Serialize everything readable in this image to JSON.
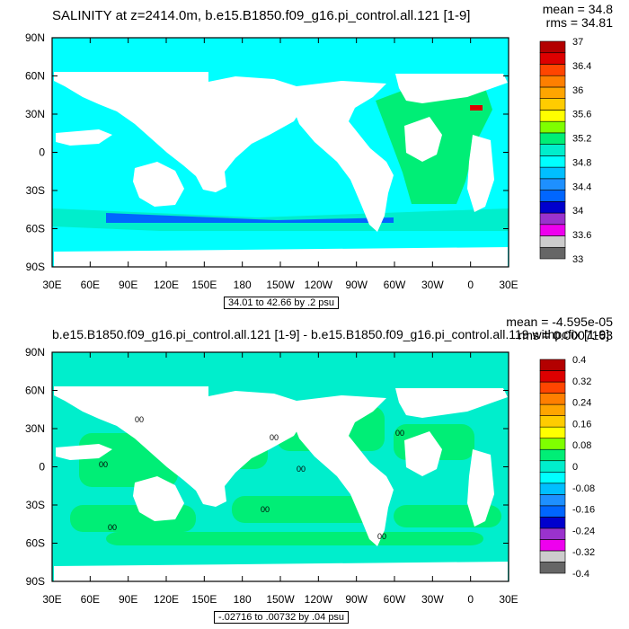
{
  "chart_data": [
    {
      "type": "heatmap",
      "title": "SALINITY at z=2414.0m, b.e15.B1850.f09_g16.pi_control.all.121 [1-9]",
      "stats": {
        "mean": "mean = 34.8",
        "rms": "rms = 34.81"
      },
      "contour_note": "34.01 to 42.66 by .2 psu",
      "x_tick_labels": [
        "30E",
        "60E",
        "90E",
        "120E",
        "150E",
        "180",
        "150W",
        "120W",
        "90W",
        "60W",
        "30W",
        "0",
        "30E"
      ],
      "y_tick_labels": [
        "90N",
        "60N",
        "30N",
        "0",
        "30S",
        "60S",
        "90S"
      ],
      "colorbar": {
        "colors": [
          "#666666",
          "#cccccc",
          "#ee00ee",
          "#9a32cd",
          "#0000cd",
          "#0066ff",
          "#1e90ff",
          "#00bfff",
          "#00ffff",
          "#00eecc",
          "#00ee76",
          "#7fff00",
          "#ffff00",
          "#ffcc00",
          "#ffa500",
          "#ff7f00",
          "#ff4500",
          "#dd0000",
          "#b30000"
        ],
        "labels": [
          "37",
          "36.4",
          "36",
          "35.6",
          "35.2",
          "34.8",
          "34.4",
          "34",
          "33.6",
          "33"
        ]
      }
    },
    {
      "type": "heatmap",
      "title": "b.e15.B1850.f09_g16.pi_control.all.121 [1-9] - b.e15.B1850.f09_g16.pi_control.all.119 withpcfix [1-9]",
      "stats": {
        "mean": "mean = -4.595e-05",
        "rms": "rms = 0.0007163"
      },
      "contour_note": "-.02716 to .00732 by .04 psu",
      "x_tick_labels": [
        "30E",
        "60E",
        "90E",
        "120E",
        "150E",
        "180",
        "150W",
        "120W",
        "90W",
        "60W",
        "30W",
        "0",
        "30E"
      ],
      "y_tick_labels": [
        "90N",
        "60N",
        "30N",
        "0",
        "30S",
        "60S",
        "90S"
      ],
      "contour_label": "00",
      "colorbar": {
        "colors": [
          "#666666",
          "#cccccc",
          "#ee00ee",
          "#9a32cd",
          "#0000cd",
          "#0066ff",
          "#1e90ff",
          "#00bfff",
          "#00ffff",
          "#00eecc",
          "#00ee76",
          "#7fff00",
          "#ffff00",
          "#ffcc00",
          "#ffa500",
          "#ff7f00",
          "#ff4500",
          "#dd0000",
          "#b30000"
        ],
        "labels": [
          "0.4",
          "0.32",
          "0.24",
          "0.16",
          "0.08",
          "0",
          "-0.08",
          "-0.16",
          "-0.24",
          "-0.32",
          "-0.4"
        ]
      }
    }
  ]
}
